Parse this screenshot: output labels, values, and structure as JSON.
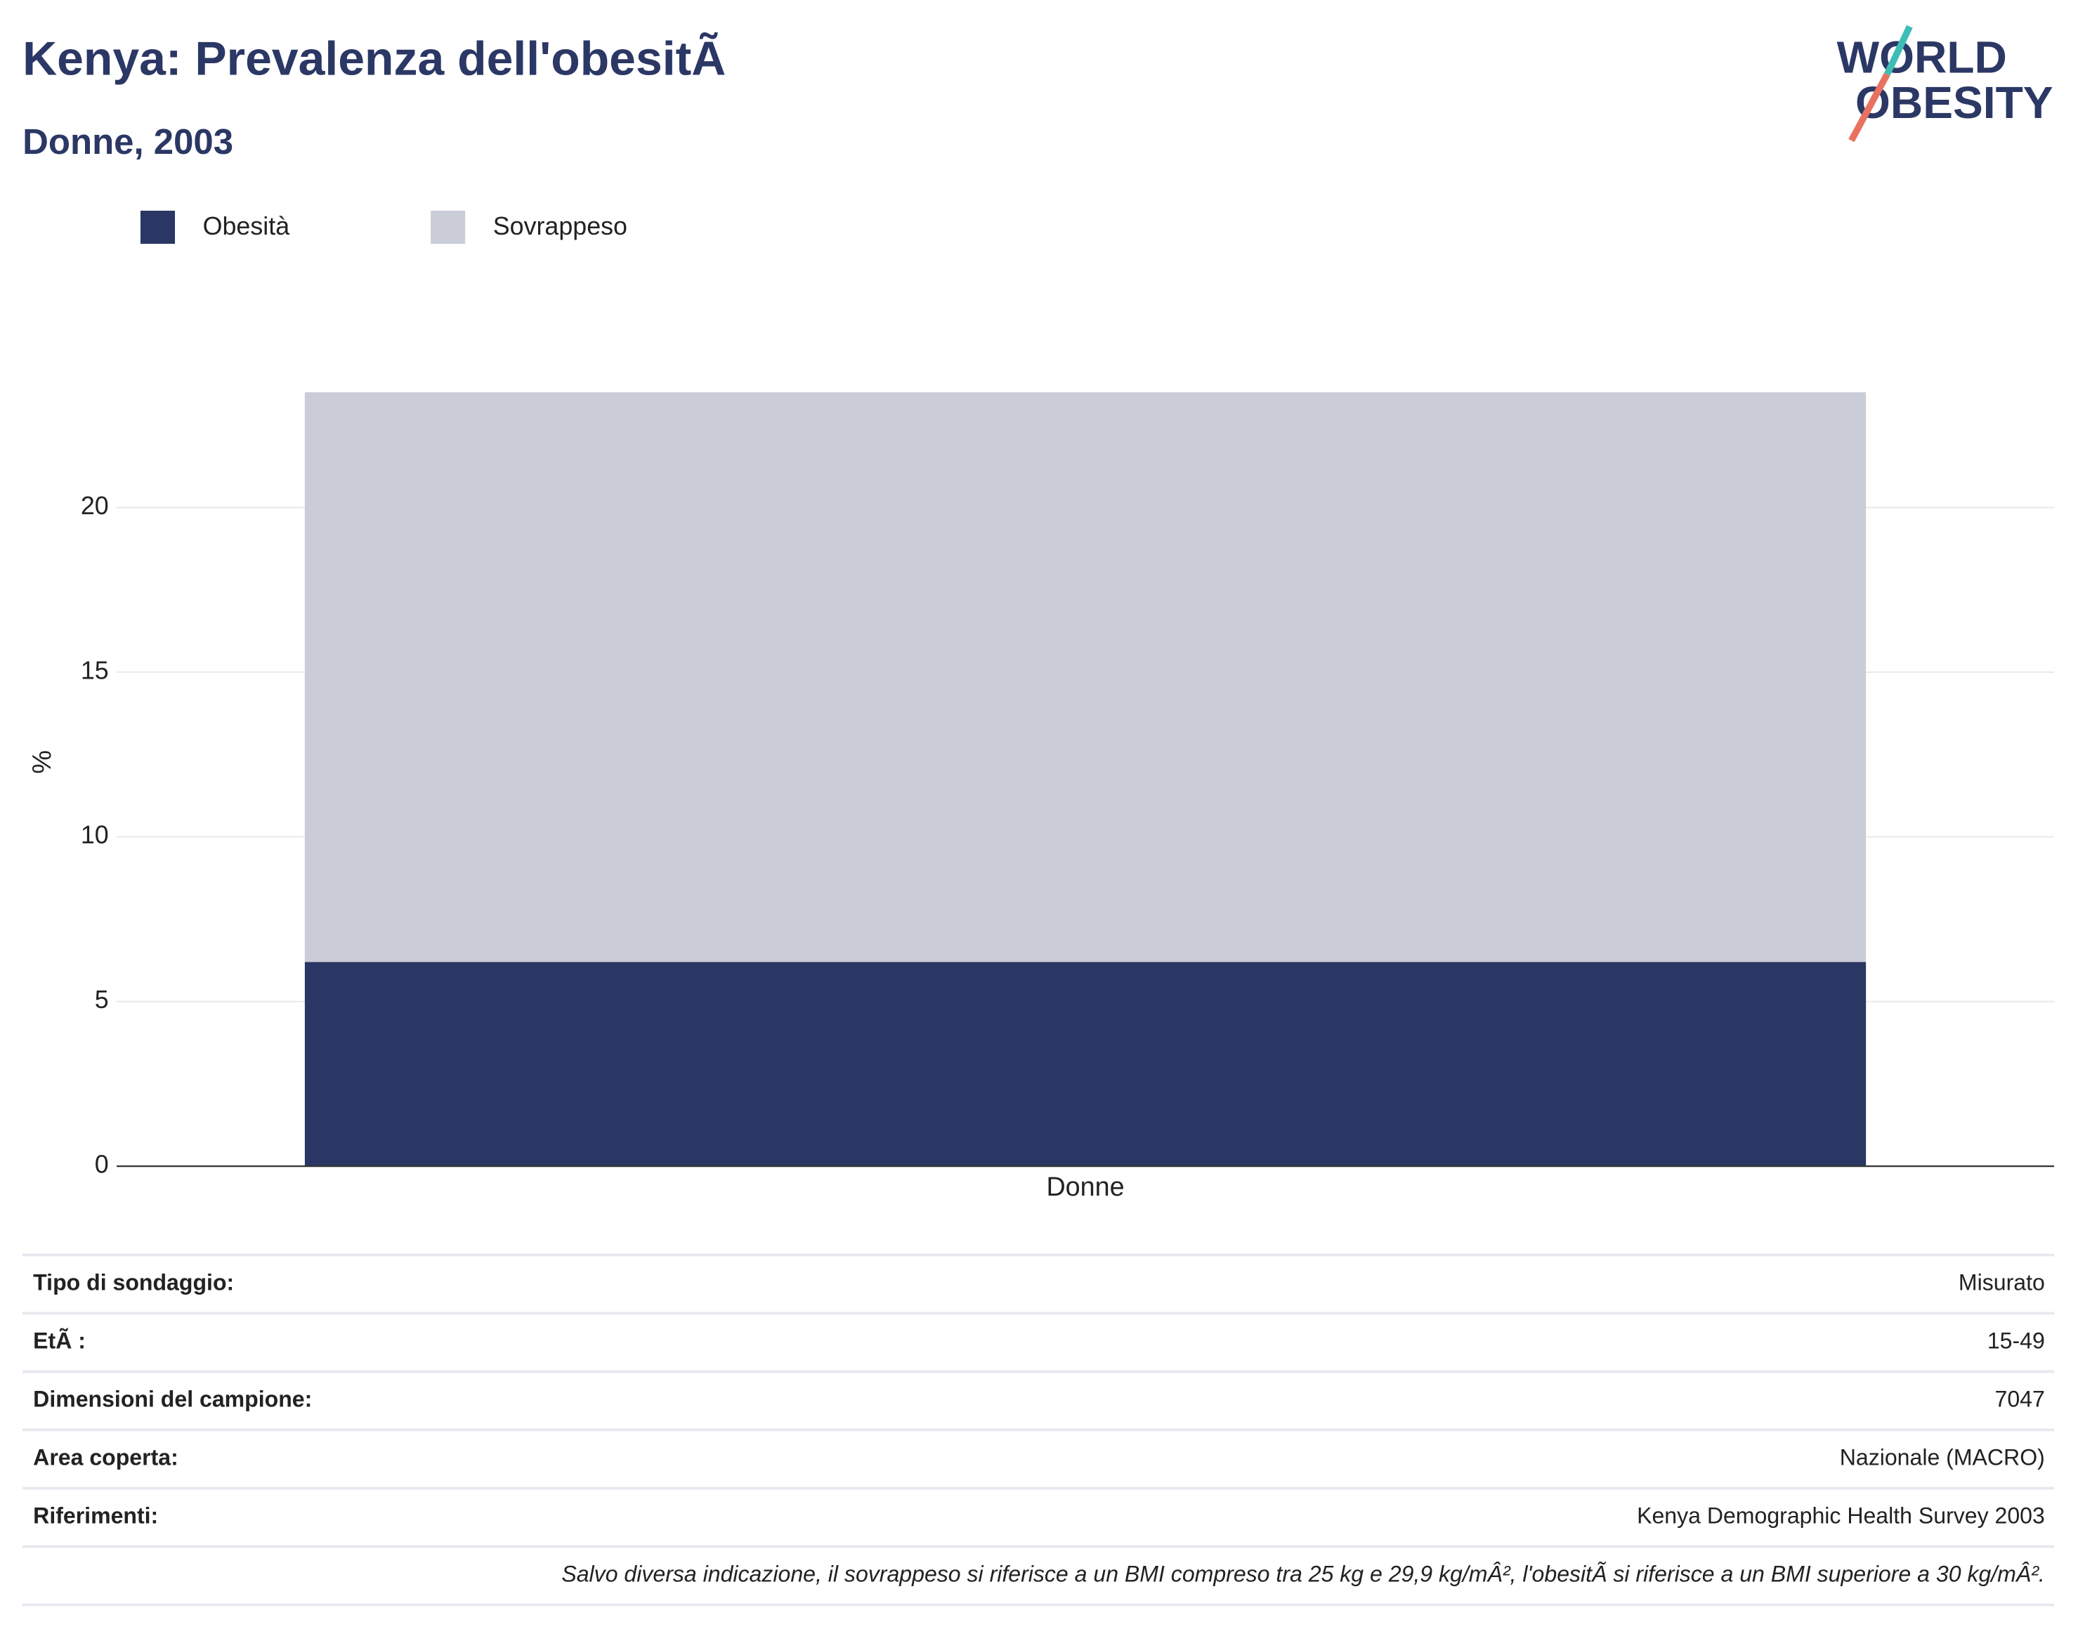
{
  "chart_data": {
    "type": "bar",
    "stacked": true,
    "title": "Kenya: Prevalenza dell'obesitÃ",
    "subtitle": "Donne, 2003",
    "y_label": "%",
    "categories": [
      "Donne"
    ],
    "series": [
      {
        "name": "Obesità",
        "color": "#2a3663",
        "values": [
          6.2
        ]
      },
      {
        "name": "Sovrappeso",
        "color": "#cacdd8",
        "values": [
          17.3
        ]
      }
    ],
    "ylim": [
      0,
      25
    ],
    "yticks": [
      0,
      5,
      10,
      15,
      20
    ],
    "grid": true,
    "legend": "top-left"
  },
  "logo": {
    "line1": "WORLD",
    "line2": "OBESITY"
  },
  "table": {
    "rows": [
      [
        "Tipo di sondaggio:",
        "Misurato"
      ],
      [
        "EtÃ :",
        "15-49"
      ],
      [
        "Dimensioni del campione:",
        "7047"
      ],
      [
        "Area coperta:",
        "Nazionale (MACRO)"
      ],
      [
        "Riferimenti:",
        "Kenya Demographic Health Survey 2003"
      ]
    ],
    "note": "Salvo diversa indicazione, il sovrappeso si riferisce a un BMI compreso tra 25 kg e 29,9 kg/mÂ², l'obesitÃ  si riferisce a un BMI superiore a 30 kg/mÂ²."
  }
}
